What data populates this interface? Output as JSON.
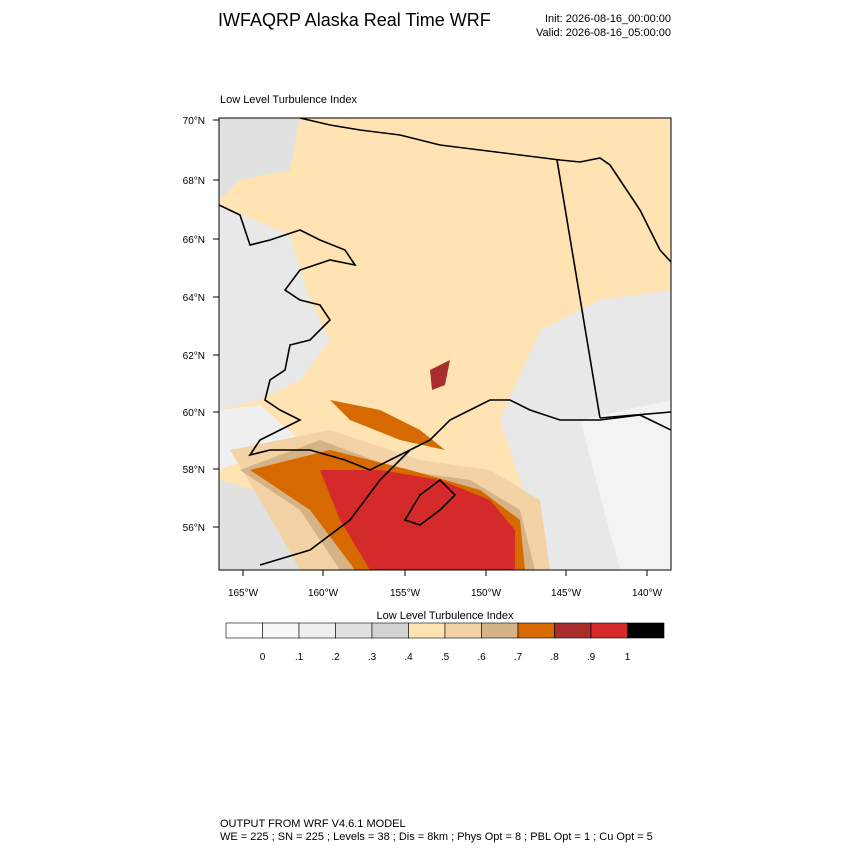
{
  "header": {
    "title": "IWFAQRP Alaska Real Time WRF",
    "init": "Init: 2026-08-16_00:00:00",
    "valid": "Valid: 2026-08-16_05:00:00"
  },
  "map": {
    "title": "Low Level Turbulence Index",
    "lat_labels": [
      "70°N",
      "68°N",
      "66°N",
      "64°N",
      "62°N",
      "60°N",
      "58°N",
      "56°N"
    ],
    "lon_labels": [
      "165°W",
      "160°W",
      "155°W",
      "150°W",
      "145°W",
      "140°W"
    ]
  },
  "colorbar": {
    "title": "Low Level Turbulence Index",
    "labels": [
      "0",
      ".1",
      ".2",
      ".3",
      ".4",
      ".5",
      ".6",
      ".7",
      ".8",
      ".9",
      "1"
    ],
    "colors": [
      "#ffffff",
      "#f7f7f7",
      "#efefef",
      "#e1e1e1",
      "#d3d3d3",
      "#ffe3b3",
      "#f3d3a6",
      "#d6b287",
      "#d66a00",
      "#a82e2e",
      "#d42a2a",
      "#000000"
    ]
  },
  "footer": {
    "lines": [
      "OUTPUT FROM WRF V4.6.1 MODEL",
      "WE = 225 ; SN = 225 ; Levels = 38 ; Dis = 8km ; Phys Opt = 8 ; PBL Opt = 1 ; Cu Opt = 5"
    ]
  }
}
